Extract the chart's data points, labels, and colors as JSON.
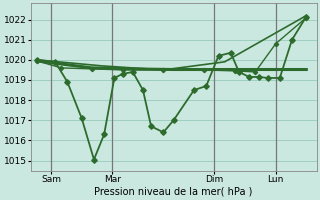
{
  "bg_color": "#cbe8e0",
  "grid_color": "#9ecfbf",
  "line_color": "#2d6b2d",
  "marker_color": "#2d6b2d",
  "xlabel": "Pression niveau de la mer( hPa )",
  "ylim": [
    1014.5,
    1022.8
  ],
  "yticks": [
    1015,
    1016,
    1017,
    1018,
    1019,
    1020,
    1021,
    1022
  ],
  "xtick_labels": [
    "Sam",
    "Mar",
    "Dim",
    "Lun"
  ],
  "xtick_positions": [
    1,
    4,
    9,
    12
  ],
  "xlim": [
    0,
    14
  ],
  "vline_positions": [
    1,
    4,
    9,
    12
  ],
  "vline_color": "#777777",
  "series_volatile": {
    "x": [
      0.3,
      1.2,
      1.8,
      2.5,
      3.1,
      3.6,
      4.1,
      4.5,
      5.0,
      5.5,
      5.9,
      6.5,
      7.0,
      8.0,
      8.6,
      9.2,
      9.8,
      10.2,
      10.7,
      11.2,
      11.6,
      12.2,
      12.8,
      13.5
    ],
    "y": [
      1020.0,
      1019.9,
      1018.9,
      1017.1,
      1015.05,
      1016.3,
      1019.1,
      1019.3,
      1019.4,
      1018.5,
      1016.7,
      1016.4,
      1017.0,
      1018.5,
      1018.7,
      1020.2,
      1020.35,
      1019.4,
      1019.15,
      1019.15,
      1019.1,
      1019.1,
      1021.0,
      1022.15
    ],
    "linewidth": 1.3,
    "markersize": 2.8
  },
  "series_rising": {
    "x": [
      0.3,
      3.5,
      6.5,
      9.5,
      13.5
    ],
    "y": [
      1020.0,
      1019.7,
      1019.5,
      1019.9,
      1022.2
    ],
    "linewidth": 1.2
  },
  "series_flat": {
    "x": [
      0.3,
      3.0,
      5.0,
      7.0,
      9.0,
      11.0,
      13.5
    ],
    "y": [
      1019.95,
      1019.6,
      1019.55,
      1019.52,
      1019.52,
      1019.52,
      1019.52
    ],
    "linewidth": 2.2
  },
  "series_mid": {
    "x": [
      0.3,
      1.5,
      3.0,
      4.5,
      6.5,
      8.5,
      10.0,
      11.0,
      12.0,
      13.5
    ],
    "y": [
      1019.95,
      1019.6,
      1019.55,
      1019.5,
      1019.5,
      1019.5,
      1019.45,
      1019.4,
      1020.8,
      1022.1
    ],
    "linewidth": 1.0,
    "markersize": 2.2
  }
}
